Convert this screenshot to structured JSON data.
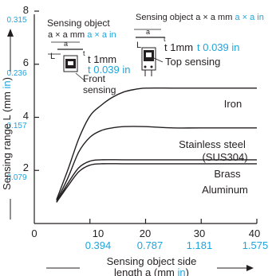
{
  "chart_data": {
    "type": "line",
    "x_ticks": [
      0,
      10,
      20,
      30,
      40
    ],
    "x_ticks_in": [
      "0.394",
      "0.787",
      "1.181",
      "1.575"
    ],
    "y_ticks": [
      2,
      4,
      6,
      8
    ],
    "y_ticks_in": [
      "0.079",
      "0.157",
      "0.236",
      "0.315"
    ],
    "xlim": [
      0,
      40
    ],
    "ylim": [
      0,
      8
    ],
    "xlabel": {
      "line1": "Sensing object side",
      "line2_prefix": "length a (mm ",
      "line2_unit": "in",
      "line2_suffix": ")"
    },
    "ylabel": {
      "prefix": "Sensing range L (mm ",
      "unit": "in",
      "suffix": ")"
    },
    "series": [
      {
        "name": "Iron",
        "x": [
          4,
          6,
          8,
          10,
          12,
          14,
          16,
          18,
          20,
          25,
          30,
          40
        ],
        "y": [
          0.9,
          2.0,
          3.2,
          4.05,
          4.45,
          4.75,
          4.95,
          5.05,
          5.1,
          5.1,
          5.1,
          5.1
        ]
      },
      {
        "name": "Stainless steel (SUS304)",
        "x": [
          4,
          6,
          8,
          10,
          12,
          14,
          16,
          20,
          25,
          30,
          40
        ],
        "y": [
          0.85,
          1.7,
          2.7,
          3.25,
          3.5,
          3.6,
          3.65,
          3.65,
          3.6,
          3.6,
          3.6
        ]
      },
      {
        "name": "Brass",
        "x": [
          4,
          6,
          8,
          10,
          12,
          16,
          20,
          30,
          40
        ],
        "y": [
          0.8,
          1.5,
          2.1,
          2.35,
          2.4,
          2.4,
          2.4,
          2.4,
          2.4
        ]
      },
      {
        "name": "Aluminum",
        "x": [
          4,
          6,
          8,
          10,
          12,
          16,
          20,
          30,
          40
        ],
        "y": [
          0.8,
          1.4,
          1.95,
          2.2,
          2.25,
          2.25,
          2.25,
          2.25,
          2.25
        ]
      }
    ],
    "series_labels": {
      "iron": "Iron",
      "stainless_1": "Stainless steel",
      "stainless_2": "(SUS304)",
      "brass": "Brass",
      "aluminum": "Aluminum"
    },
    "annotations": {
      "front": {
        "line1": "Sensing object",
        "line2_mm": "a × a mm",
        "line2_in": "a × a in",
        "thickness_mm": "t 1mm",
        "thickness_in": "t 0.039 in",
        "dim_L": "L",
        "dim_a": "a",
        "dim_t": "t",
        "label_1": "Front",
        "label_2": "sensing"
      },
      "top": {
        "line1_mm": "Sensing object  a × a mm",
        "line1_in": "a × a in",
        "thickness_mm": "t 1mm",
        "thickness_in": "t 0.039 in",
        "dim_L": "L",
        "dim_a": "a",
        "dim_t": "t",
        "label": "Top sensing"
      }
    },
    "colors": {
      "black": "#231f20",
      "blue": "#1ea5dc"
    },
    "grid": false
  }
}
